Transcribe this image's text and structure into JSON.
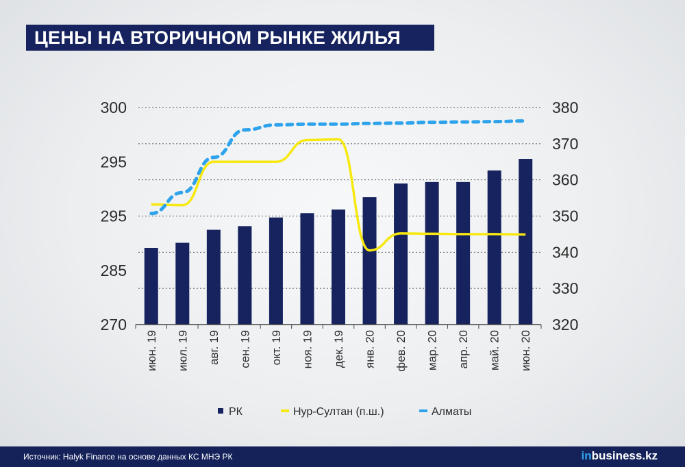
{
  "title": "ЦЕНЫ НА ВТОРИЧНОМ РЫНКЕ ЖИЛЬЯ",
  "footer": {
    "source": "Источник: Halyk Finance на основе данных КС МНЭ РК",
    "brand_prefix": "in",
    "brand_suffix": "business.kz"
  },
  "chart_data": {
    "type": "bar+line",
    "categories": [
      "июн. 19",
      "июл. 19",
      "авг. 19",
      "сен. 19",
      "окт. 19",
      "ноя. 19",
      "дек. 19",
      "янв. 20",
      "фев. 20",
      "мар. 20",
      "апр. 20",
      "май. 20",
      "июн. 20"
    ],
    "left_axis": {
      "tick_labels": [
        "270",
        "285",
        "295",
        "295",
        "300"
      ],
      "note": "printed labels as shown; bar values below are in plot-scale units (270 at bottom, 300 at top, 5 units per printed tick step)"
    },
    "right_axis": {
      "tick_labels": [
        "320",
        "330",
        "340",
        "350",
        "360",
        "370",
        "380"
      ],
      "ylim": [
        320,
        380
      ]
    },
    "series": [
      {
        "name": "РК",
        "kind": "bar",
        "axis": "left",
        "color": "#16235e",
        "ylim": [
          270,
          300
        ],
        "values": [
          280.6,
          281.3,
          283.1,
          283.6,
          284.8,
          285.4,
          285.9,
          287.6,
          289.5,
          289.7,
          289.7,
          291.3,
          292.9
        ]
      },
      {
        "name": "Нур-Султан (п.ш.)",
        "kind": "line",
        "axis": "right",
        "color": "#f7e80f",
        "values": [
          353.2,
          353.0,
          365.0,
          365.0,
          365.0,
          371.0,
          371.2,
          340.5,
          345.2,
          345.1,
          345.0,
          345.0,
          344.9
        ]
      },
      {
        "name": "Алматы",
        "kind": "line",
        "axis": "right",
        "color": "#2ea3ec",
        "dashed": true,
        "values": [
          350.7,
          356.5,
          366.2,
          373.8,
          375.2,
          375.4,
          375.4,
          375.6,
          375.7,
          375.9,
          376.0,
          376.1,
          376.3
        ]
      }
    ],
    "grid": "horizontal-dotted",
    "legend": "bottom-center"
  }
}
